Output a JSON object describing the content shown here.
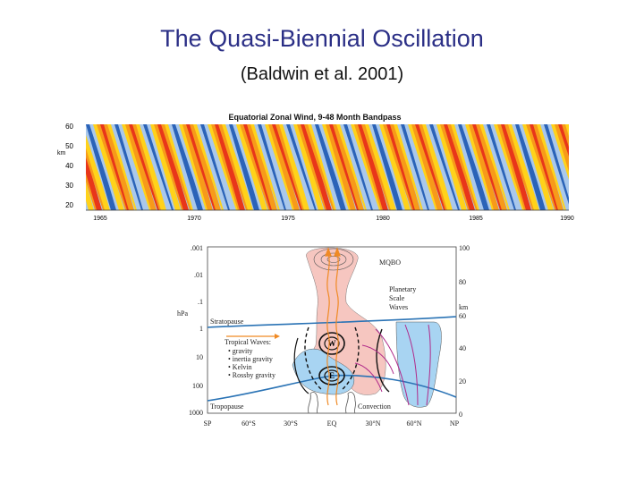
{
  "slide": {
    "title": "The Quasi-Biennial Oscillation",
    "subtitle": "(Baldwin et al. 2001)"
  },
  "figure_top": {
    "title": "Equatorial Zonal Wind, 9-48 Month Bandpass",
    "y_unit": "km",
    "y_ticks": [
      "60",
      "50",
      "40",
      "30",
      "20"
    ],
    "x_ticks": [
      "1965",
      "1970",
      "1975",
      "1980",
      "1985",
      "1990"
    ],
    "colors": {
      "east": "#2b63b8",
      "west": "#e8361a",
      "mid": "#ffd21a",
      "light": "#a9c8ec",
      "orange": "#f79a1a"
    }
  },
  "figure_bottom": {
    "left_axis_unit": "hPa",
    "left_ticks": [
      ".001",
      ".01",
      ".1",
      "1",
      "10",
      "100",
      "1000"
    ],
    "right_axis_unit": "km",
    "right_ticks": [
      "100",
      "80",
      "60",
      "40",
      "20",
      "0"
    ],
    "x_ticks": [
      "SP",
      "60°S",
      "30°S",
      "EQ",
      "30°N",
      "60°N",
      "NP"
    ],
    "labels": {
      "mqbo": "MQBO",
      "planetary": [
        "Planetary",
        "Scale",
        "Waves"
      ],
      "stratopause": "Stratopause",
      "tropopause": "Tropopause",
      "tropical_waves": "Tropical Waves:",
      "wave_types": [
        "• gravity",
        "• inertia gravity",
        "• Kelvin",
        "• Rossby gravity"
      ],
      "convection": "Convection",
      "w": "W",
      "e": "E"
    },
    "colors": {
      "pink": "#f6c6c0",
      "blue": "#a8d4f2",
      "line": "#2a73b5",
      "arrow": "#f08a24",
      "purple": "#b02a8a"
    }
  }
}
